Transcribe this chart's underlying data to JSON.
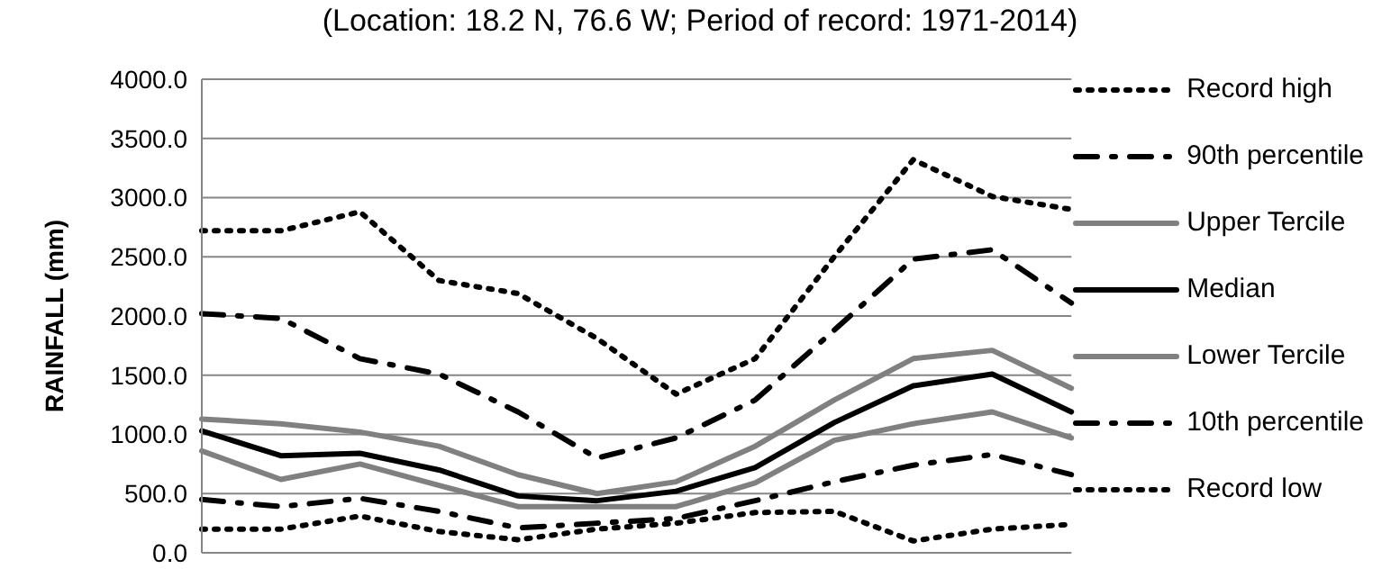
{
  "chart_data": {
    "type": "line",
    "title": "(Location: 18.2 N, 76.6 W; Period of record: 1971-2014)",
    "ylabel": "RAINFALL (mm)",
    "categories": [
      null,
      null,
      null,
      null,
      null,
      null,
      null,
      null,
      null,
      null,
      null,
      null
    ],
    "series": [
      {
        "name": "Record high",
        "color": "#000000",
        "line_style": "dotted",
        "values": [
          2720,
          2720,
          2880,
          2300,
          2190,
          1810,
          1340,
          1640,
          2500,
          3320,
          3010,
          2900
        ]
      },
      {
        "name": "90th percentile",
        "color": "#000000",
        "line_style": "dashed",
        "values": [
          2020,
          1980,
          1640,
          1510,
          1190,
          800,
          970,
          1290,
          1880,
          2480,
          2560,
          2110
        ]
      },
      {
        "name": "Upper Tercile",
        "color": "#808080",
        "line_style": "solid",
        "values": [
          1130,
          1090,
          1020,
          900,
          660,
          500,
          600,
          900,
          1290,
          1640,
          1710,
          1390
        ]
      },
      {
        "name": "Median",
        "color": "#000000",
        "line_style": "solid",
        "values": [
          1030,
          820,
          840,
          700,
          480,
          440,
          520,
          720,
          1100,
          1410,
          1510,
          1190
        ]
      },
      {
        "name": "Lower Tercile",
        "color": "#808080",
        "line_style": "solid",
        "values": [
          860,
          620,
          750,
          570,
          390,
          390,
          390,
          590,
          950,
          1090,
          1190,
          970
        ]
      },
      {
        "name": "10th percentile",
        "color": "#000000",
        "line_style": "dashed",
        "values": [
          450,
          390,
          460,
          350,
          210,
          250,
          290,
          440,
          600,
          740,
          830,
          660
        ]
      },
      {
        "name": "Record low",
        "color": "#000000",
        "line_style": "dotted",
        "values": [
          200,
          200,
          310,
          180,
          110,
          200,
          250,
          340,
          350,
          100,
          200,
          240
        ]
      }
    ],
    "ylim": [
      0,
      4000
    ],
    "yticks": [
      {
        "value": 0,
        "label": "0.0"
      },
      {
        "value": 500,
        "label": "500.0"
      },
      {
        "value": 1000,
        "label": "1000.0"
      },
      {
        "value": 1500,
        "label": "1500.0"
      },
      {
        "value": 2000,
        "label": "2000.0"
      },
      {
        "value": 2500,
        "label": "2500.0"
      },
      {
        "value": 3000,
        "label": "3000.0"
      },
      {
        "value": 3500,
        "label": "3500.0"
      },
      {
        "value": 4000,
        "label": "4000.0"
      }
    ],
    "grid": "y",
    "legend": "right",
    "marker": "none"
  }
}
